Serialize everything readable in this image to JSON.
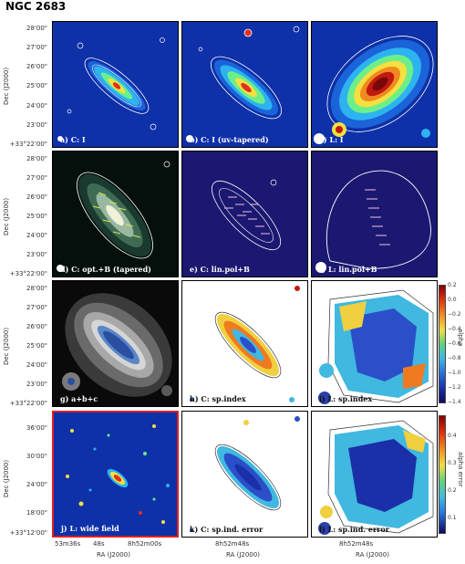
{
  "title": "NGC 2683",
  "panels": {
    "a": "a) C: I",
    "b": "b) C: I (uv-tapered)",
    "c": "c) L: I",
    "d": "d) C: opt.+B (tapered)",
    "e": "e) C: lin.pol+B",
    "f": "f) L: lin.pol+B",
    "g": "g)    a+b+c",
    "h": "h) C: sp.index",
    "i": "i) L: sp.index",
    "j": "j) L: wide field",
    "k": "k) C: sp.ind. error",
    "l": "l) L: sp.ind. error"
  },
  "axes": {
    "dec_label": "Dec (J2000)",
    "ra_label": "RA (J2000)",
    "dec_ticks_main": [
      "28'00\"",
      "27'00\"",
      "26'00\"",
      "25'00\"",
      "24'00\"",
      "23'00\"",
      "+33°22'00\""
    ],
    "dec_ticks_wide": [
      "36'00\"",
      "30'00\"",
      "24'00\"",
      "18'00\"",
      "+33°12'00\""
    ],
    "ra_ticks_wide": [
      "53m36s",
      "48s",
      "8h52m00s"
    ],
    "ra_tick_k": "8h52m48s",
    "ra_tick_l": "8h52m48s"
  },
  "colorbars": {
    "alpha": {
      "label": "alpha",
      "ticks": [
        "0.2",
        "0.0",
        "−0.2",
        "−0.4",
        "−0.6",
        "−0.8",
        "−1.0",
        "−1.2",
        "−1.4"
      ]
    },
    "alpha_error": {
      "label": "alpha error",
      "ticks": [
        "0.4",
        "0.3",
        "0.2",
        "0.1"
      ]
    }
  }
}
